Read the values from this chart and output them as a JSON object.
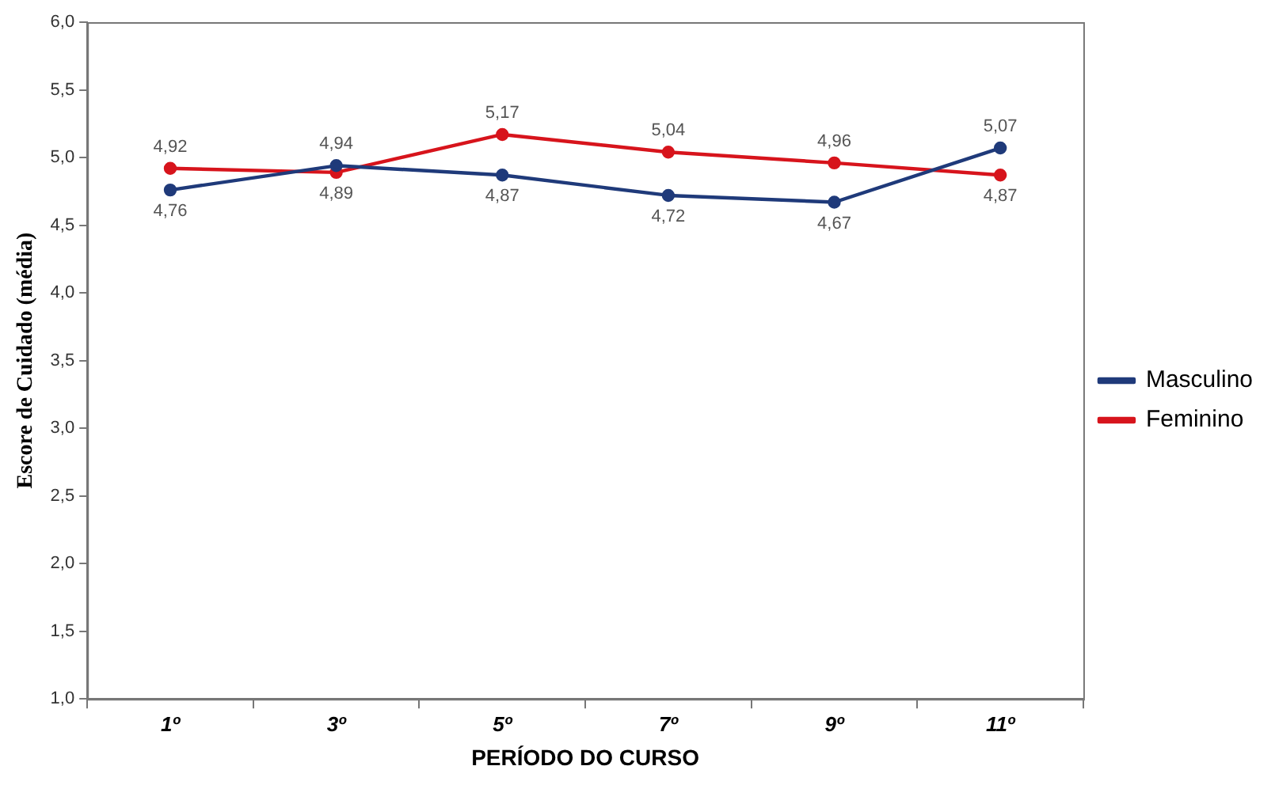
{
  "chart_data": {
    "type": "line",
    "xlabel": "PERÍODO DO CURSO",
    "ylabel": "Escore de Cuidado (média)",
    "categories": [
      "1º",
      "3º",
      "5º",
      "7º",
      "9º",
      "11º"
    ],
    "series": [
      {
        "name": "Masculino",
        "color": "#1f3a7a",
        "values": [
          4.76,
          4.94,
          4.87,
          4.72,
          4.67,
          5.07
        ],
        "value_labels": [
          "4,76",
          "4,94",
          "4,87",
          "4,72",
          "4,67",
          "5,07"
        ]
      },
      {
        "name": "Feminino",
        "color": "#d7141c",
        "values": [
          4.92,
          4.89,
          5.17,
          5.04,
          4.96,
          4.87
        ],
        "value_labels": [
          "4,92",
          "4,89",
          "5,17",
          "5,04",
          "4,96",
          "4,87"
        ]
      }
    ],
    "ylim": [
      1,
      6
    ],
    "yticks": [
      {
        "value": 1,
        "label": "1,0"
      },
      {
        "value": 1.5,
        "label": "1,5"
      },
      {
        "value": 2,
        "label": "2,0"
      },
      {
        "value": 2.5,
        "label": "2,5"
      },
      {
        "value": 3,
        "label": "3,0"
      },
      {
        "value": 3.5,
        "label": "3,5"
      },
      {
        "value": 4,
        "label": "4,0"
      },
      {
        "value": 4.5,
        "label": "4,5"
      },
      {
        "value": 5,
        "label": "5,0"
      },
      {
        "value": 5.5,
        "label": "5,5"
      },
      {
        "value": 6,
        "label": "6,0"
      }
    ],
    "grid": false,
    "legend": "right",
    "marker": "circle",
    "line_style": "solid"
  }
}
